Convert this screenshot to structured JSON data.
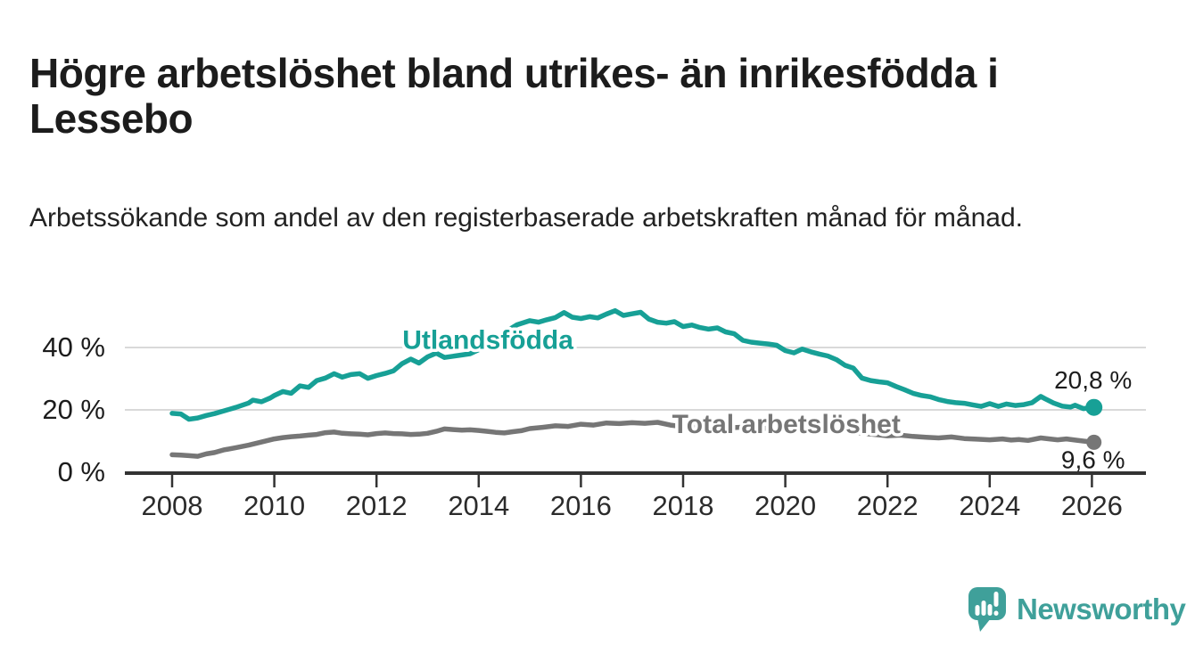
{
  "header": {
    "title": "Högre arbetslöshet bland utrikes- än inrikesfödda i Lessebo",
    "subtitle": "Arbetssökande som andel av den registerbaserade arbetskraften månad för månad."
  },
  "footer": {
    "brand": "Newsworthy"
  },
  "colors": {
    "teal": "#17a096",
    "gray": "#767676",
    "ink": "#1c1c1c",
    "axis": "#333333",
    "grid": "#d9d9d9",
    "tick_label": "#2b2b2b",
    "logo_teal": "#3fa09a"
  },
  "chart_data": {
    "type": "line",
    "title": "",
    "xlabel": "",
    "ylabel": "",
    "x_axis": {
      "min": 2007.1,
      "max": 2026.9,
      "ticks": [
        2008,
        2010,
        2012,
        2014,
        2016,
        2018,
        2020,
        2022,
        2024,
        2026
      ]
    },
    "y_axis": {
      "min": 0,
      "max": 55,
      "ticks": [
        {
          "value": 0,
          "label": "0 %"
        },
        {
          "value": 20,
          "label": "20 %"
        },
        {
          "value": 40,
          "label": "40 %"
        }
      ]
    },
    "legend_position": "inline-labels",
    "grid": "horizontal",
    "series": [
      {
        "name": "Utlandsfödda",
        "color": "#17a096",
        "end_label": "20,8 %",
        "end_value": 20.8,
        "end_label_side": "above",
        "label_pos": {
          "x": 2014.18,
          "y": 42.4
        },
        "points": [
          [
            2008.0,
            18.9
          ],
          [
            2008.17,
            18.7
          ],
          [
            2008.33,
            17.0
          ],
          [
            2008.5,
            17.4
          ],
          [
            2008.67,
            18.2
          ],
          [
            2008.83,
            18.8
          ],
          [
            2009.0,
            19.6
          ],
          [
            2009.25,
            20.8
          ],
          [
            2009.5,
            22.2
          ],
          [
            2009.58,
            23.1
          ],
          [
            2009.75,
            22.6
          ],
          [
            2009.92,
            23.8
          ],
          [
            2010.0,
            24.6
          ],
          [
            2010.17,
            25.9
          ],
          [
            2010.33,
            25.3
          ],
          [
            2010.5,
            27.7
          ],
          [
            2010.67,
            27.2
          ],
          [
            2010.83,
            29.4
          ],
          [
            2011.0,
            30.2
          ],
          [
            2011.17,
            31.6
          ],
          [
            2011.33,
            30.5
          ],
          [
            2011.5,
            31.3
          ],
          [
            2011.67,
            31.6
          ],
          [
            2011.83,
            30.1
          ],
          [
            2012.0,
            31.0
          ],
          [
            2012.17,
            31.7
          ],
          [
            2012.33,
            32.5
          ],
          [
            2012.5,
            34.8
          ],
          [
            2012.67,
            36.3
          ],
          [
            2012.83,
            35.0
          ],
          [
            2013.0,
            37.0
          ],
          [
            2013.17,
            38.2
          ],
          [
            2013.33,
            36.8
          ],
          [
            2013.5,
            37.2
          ],
          [
            2013.67,
            37.6
          ],
          [
            2013.83,
            38.0
          ],
          [
            2014.0,
            39.3
          ],
          [
            2014.25,
            41.8
          ],
          [
            2014.5,
            44.8
          ],
          [
            2014.75,
            47.3
          ],
          [
            2015.0,
            48.6
          ],
          [
            2015.17,
            48.1
          ],
          [
            2015.33,
            48.9
          ],
          [
            2015.5,
            49.6
          ],
          [
            2015.67,
            51.2
          ],
          [
            2015.83,
            49.7
          ],
          [
            2016.0,
            49.3
          ],
          [
            2016.17,
            49.9
          ],
          [
            2016.33,
            49.5
          ],
          [
            2016.5,
            50.7
          ],
          [
            2016.67,
            51.8
          ],
          [
            2016.83,
            50.3
          ],
          [
            2017.0,
            50.8
          ],
          [
            2017.17,
            51.3
          ],
          [
            2017.33,
            49.1
          ],
          [
            2017.5,
            48.1
          ],
          [
            2017.67,
            47.8
          ],
          [
            2017.83,
            48.3
          ],
          [
            2018.0,
            46.7
          ],
          [
            2018.17,
            47.2
          ],
          [
            2018.33,
            46.4
          ],
          [
            2018.5,
            45.9
          ],
          [
            2018.67,
            46.3
          ],
          [
            2018.83,
            45.0
          ],
          [
            2019.0,
            44.4
          ],
          [
            2019.17,
            42.3
          ],
          [
            2019.33,
            41.7
          ],
          [
            2019.5,
            41.4
          ],
          [
            2019.67,
            41.1
          ],
          [
            2019.83,
            40.7
          ],
          [
            2020.0,
            39.0
          ],
          [
            2020.17,
            38.3
          ],
          [
            2020.33,
            39.5
          ],
          [
            2020.5,
            38.6
          ],
          [
            2020.67,
            37.9
          ],
          [
            2020.83,
            37.3
          ],
          [
            2021.0,
            36.1
          ],
          [
            2021.17,
            34.3
          ],
          [
            2021.33,
            33.4
          ],
          [
            2021.5,
            30.2
          ],
          [
            2021.67,
            29.4
          ],
          [
            2021.83,
            29.0
          ],
          [
            2022.0,
            28.7
          ],
          [
            2022.17,
            27.5
          ],
          [
            2022.33,
            26.5
          ],
          [
            2022.5,
            25.3
          ],
          [
            2022.67,
            24.6
          ],
          [
            2022.83,
            24.2
          ],
          [
            2023.0,
            23.3
          ],
          [
            2023.17,
            22.7
          ],
          [
            2023.33,
            22.3
          ],
          [
            2023.5,
            22.1
          ],
          [
            2023.67,
            21.6
          ],
          [
            2023.83,
            21.1
          ],
          [
            2024.0,
            22.0
          ],
          [
            2024.17,
            21.1
          ],
          [
            2024.33,
            21.9
          ],
          [
            2024.5,
            21.4
          ],
          [
            2024.67,
            21.7
          ],
          [
            2024.83,
            22.3
          ],
          [
            2025.0,
            24.3
          ],
          [
            2025.08,
            23.6
          ],
          [
            2025.25,
            22.2
          ],
          [
            2025.42,
            21.2
          ],
          [
            2025.58,
            20.9
          ],
          [
            2025.67,
            21.5
          ],
          [
            2025.83,
            20.4
          ],
          [
            2026.04,
            20.8
          ]
        ]
      },
      {
        "name": "Total arbetslöshet",
        "color": "#767676",
        "end_label": "9,6 %",
        "end_value": 9.6,
        "end_label_side": "below",
        "label_pos": {
          "x": 2020.02,
          "y": 15.4
        },
        "points": [
          [
            2008.0,
            5.6
          ],
          [
            2008.17,
            5.5
          ],
          [
            2008.33,
            5.3
          ],
          [
            2008.5,
            5.1
          ],
          [
            2008.67,
            5.9
          ],
          [
            2008.83,
            6.3
          ],
          [
            2009.0,
            7.1
          ],
          [
            2009.25,
            7.9
          ],
          [
            2009.5,
            8.7
          ],
          [
            2009.75,
            9.7
          ],
          [
            2010.0,
            10.7
          ],
          [
            2010.17,
            11.1
          ],
          [
            2010.33,
            11.4
          ],
          [
            2010.5,
            11.6
          ],
          [
            2010.67,
            11.9
          ],
          [
            2010.83,
            12.1
          ],
          [
            2011.0,
            12.7
          ],
          [
            2011.17,
            12.9
          ],
          [
            2011.33,
            12.5
          ],
          [
            2011.5,
            12.3
          ],
          [
            2011.67,
            12.2
          ],
          [
            2011.83,
            12.0
          ],
          [
            2012.0,
            12.4
          ],
          [
            2012.17,
            12.6
          ],
          [
            2012.33,
            12.4
          ],
          [
            2012.5,
            12.3
          ],
          [
            2012.67,
            12.1
          ],
          [
            2012.83,
            12.2
          ],
          [
            2013.0,
            12.5
          ],
          [
            2013.17,
            13.1
          ],
          [
            2013.33,
            13.9
          ],
          [
            2013.5,
            13.7
          ],
          [
            2013.67,
            13.5
          ],
          [
            2013.83,
            13.6
          ],
          [
            2014.0,
            13.4
          ],
          [
            2014.17,
            13.1
          ],
          [
            2014.33,
            12.8
          ],
          [
            2014.5,
            12.6
          ],
          [
            2014.67,
            13.0
          ],
          [
            2014.83,
            13.3
          ],
          [
            2015.0,
            14.0
          ],
          [
            2015.25,
            14.4
          ],
          [
            2015.5,
            14.9
          ],
          [
            2015.75,
            14.7
          ],
          [
            2016.0,
            15.4
          ],
          [
            2016.25,
            15.1
          ],
          [
            2016.5,
            15.8
          ],
          [
            2016.75,
            15.6
          ],
          [
            2017.0,
            15.9
          ],
          [
            2017.25,
            15.7
          ],
          [
            2017.5,
            16.0
          ],
          [
            2017.75,
            15.1
          ],
          [
            2018.0,
            14.6
          ],
          [
            2018.25,
            14.9
          ],
          [
            2018.5,
            14.4
          ],
          [
            2018.75,
            14.7
          ],
          [
            2019.0,
            14.3
          ],
          [
            2019.25,
            14.5
          ],
          [
            2019.5,
            14.0
          ],
          [
            2019.75,
            14.2
          ],
          [
            2020.0,
            13.9
          ],
          [
            2020.25,
            14.5
          ],
          [
            2020.5,
            14.2
          ],
          [
            2020.75,
            13.9
          ],
          [
            2021.0,
            13.6
          ],
          [
            2021.25,
            13.3
          ],
          [
            2021.5,
            12.5
          ],
          [
            2021.75,
            12.1
          ],
          [
            2022.0,
            11.7
          ],
          [
            2022.25,
            11.9
          ],
          [
            2022.5,
            11.5
          ],
          [
            2022.75,
            11.2
          ],
          [
            2023.0,
            11.0
          ],
          [
            2023.25,
            11.3
          ],
          [
            2023.5,
            10.8
          ],
          [
            2023.75,
            10.6
          ],
          [
            2024.0,
            10.4
          ],
          [
            2024.25,
            10.7
          ],
          [
            2024.42,
            10.3
          ],
          [
            2024.58,
            10.5
          ],
          [
            2024.75,
            10.2
          ],
          [
            2025.0,
            11.0
          ],
          [
            2025.17,
            10.7
          ],
          [
            2025.33,
            10.4
          ],
          [
            2025.5,
            10.7
          ],
          [
            2025.67,
            10.3
          ],
          [
            2025.83,
            10.0
          ],
          [
            2026.04,
            9.6
          ]
        ]
      }
    ]
  }
}
